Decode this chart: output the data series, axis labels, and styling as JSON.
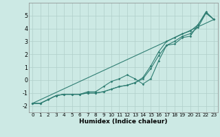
{
  "xlabel": "Humidex (Indice chaleur)",
  "xlim": [
    -0.5,
    23.5
  ],
  "ylim": [
    -2.5,
    6.0
  ],
  "yticks": [
    -2,
    -1,
    0,
    1,
    2,
    3,
    4,
    5
  ],
  "xticks": [
    0,
    1,
    2,
    3,
    4,
    5,
    6,
    7,
    8,
    9,
    10,
    11,
    12,
    13,
    14,
    15,
    16,
    17,
    18,
    19,
    20,
    21,
    22,
    23
  ],
  "bg_color": "#cce9e4",
  "grid_color": "#b0cec9",
  "line_color": "#2e7d72",
  "line1_y": [
    -1.8,
    -1.8,
    -1.5,
    -1.2,
    -1.1,
    -1.1,
    -1.1,
    -0.9,
    -0.9,
    -0.5,
    -0.1,
    0.1,
    0.4,
    0.1,
    -0.3,
    0.1,
    1.5,
    2.7,
    2.8,
    3.3,
    3.4,
    4.3,
    5.3,
    4.7
  ],
  "line2_y": [
    -1.8,
    -1.8,
    -1.5,
    -1.2,
    -1.1,
    -1.1,
    -1.1,
    -1.0,
    -1.0,
    -0.9,
    -0.7,
    -0.5,
    -0.4,
    -0.2,
    0.1,
    0.9,
    1.9,
    2.7,
    3.0,
    3.4,
    3.6,
    4.1,
    5.2,
    4.7
  ],
  "line3_y": [
    -1.8,
    -1.8,
    -1.5,
    -1.2,
    -1.1,
    -1.1,
    -1.1,
    -1.0,
    -1.0,
    -0.9,
    -0.7,
    -0.5,
    -0.4,
    -0.2,
    0.2,
    1.1,
    2.2,
    3.0,
    3.3,
    3.6,
    3.8,
    4.3,
    5.2,
    4.7
  ],
  "line4_x": [
    0,
    23
  ],
  "line4_y": [
    -1.8,
    4.7
  ],
  "xlabel_fontsize": 6.5,
  "tick_fontsize": 5.2,
  "ytick_fontsize": 5.8
}
